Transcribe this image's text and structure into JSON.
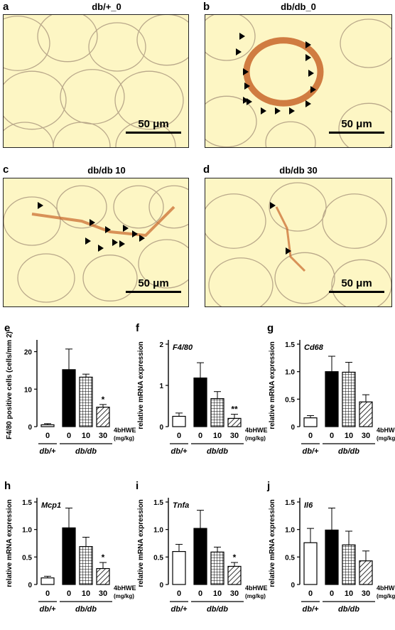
{
  "micrographs": [
    {
      "letter": "a",
      "title": "db/+_0",
      "scale": "50 μm",
      "arrowheads": 0
    },
    {
      "letter": "b",
      "title": "db/db_0",
      "scale": "50 μm",
      "arrowheads": 14
    },
    {
      "letter": "c",
      "title": "db/db  10",
      "scale": "50 μm",
      "arrowheads": 10
    },
    {
      "letter": "d",
      "title": "db/db  30",
      "scale": "50 μm",
      "arrowheads": 2
    }
  ],
  "treatment_label": "4bHWE",
  "unit_label": "(mg/kg)",
  "dose_ticks": [
    "0",
    "0",
    "10",
    "30"
  ],
  "group_labels": [
    "db/+",
    "db/db"
  ],
  "colors": {
    "background": "#fdf6c4",
    "stain": "#c8662a",
    "bar_black": "#000000",
    "bar_white": "#ffffff"
  },
  "chart_data": [
    {
      "letter": "e",
      "type": "bar",
      "ylabel": "F4/80 positive cells (cells/mm 2)",
      "gene": "",
      "yticks": [
        "0",
        "10",
        "20"
      ],
      "ylim": [
        0,
        22
      ],
      "categories": [
        "db/+ 0",
        "db/db 0",
        "db/db 10",
        "db/db 30"
      ],
      "values": [
        0.5,
        15.2,
        13.2,
        5.2
      ],
      "errors": [
        0.3,
        5.5,
        0.8,
        0.7
      ],
      "significance": [
        "",
        "",
        "",
        "*"
      ]
    },
    {
      "letter": "f",
      "type": "bar",
      "ylabel": "relative mRNA expression",
      "gene": "F4/80",
      "yticks": [
        "0",
        "1",
        "2"
      ],
      "ylim": [
        0,
        2
      ],
      "categories": [
        "db/+ 0",
        "db/db 0",
        "db/db 10",
        "db/db 30"
      ],
      "values": [
        0.25,
        1.18,
        0.68,
        0.2
      ],
      "errors": [
        0.08,
        0.37,
        0.17,
        0.1
      ],
      "significance": [
        "",
        "",
        "",
        "**"
      ]
    },
    {
      "letter": "g",
      "type": "bar",
      "ylabel": "relative mRNA expression",
      "gene": "Cd68",
      "yticks": [
        "0",
        "0.5",
        "1.0",
        "1.5"
      ],
      "ylim": [
        0,
        1.5
      ],
      "categories": [
        "db/+ 0",
        "db/db 0",
        "db/db 10",
        "db/db 30"
      ],
      "values": [
        0.16,
        1.0,
        0.99,
        0.45
      ],
      "errors": [
        0.04,
        0.28,
        0.18,
        0.13
      ],
      "significance": [
        "",
        "",
        "",
        ""
      ]
    },
    {
      "letter": "h",
      "type": "bar",
      "ylabel": "relative mRNA expression",
      "gene": "Mcp1",
      "yticks": [
        "0",
        "0.5",
        "1.0",
        "1.5"
      ],
      "ylim": [
        0,
        1.5
      ],
      "categories": [
        "db/+ 0",
        "db/db 0",
        "db/db 10",
        "db/db 30"
      ],
      "values": [
        0.12,
        1.03,
        0.69,
        0.29
      ],
      "errors": [
        0.03,
        0.36,
        0.17,
        0.11
      ],
      "significance": [
        "",
        "",
        "",
        "*"
      ]
    },
    {
      "letter": "i",
      "type": "bar",
      "ylabel": "relative mRNA expression",
      "gene": "Tnfa",
      "yticks": [
        "0",
        "0.5",
        "1.0",
        "1.5"
      ],
      "ylim": [
        0,
        1.5
      ],
      "categories": [
        "db/+ 0",
        "db/db 0",
        "db/db 10",
        "db/db 30"
      ],
      "values": [
        0.6,
        1.02,
        0.59,
        0.33
      ],
      "errors": [
        0.13,
        0.33,
        0.09,
        0.07
      ],
      "significance": [
        "",
        "",
        "",
        "*"
      ]
    },
    {
      "letter": "j",
      "type": "bar",
      "ylabel": "relative mRNA expression",
      "gene": "Il6",
      "yticks": [
        "0",
        "0.5",
        "1.0",
        "1.5"
      ],
      "ylim": [
        0,
        1.5
      ],
      "categories": [
        "db/+ 0",
        "db/db 0",
        "db/db 10",
        "db/db 30"
      ],
      "values": [
        0.76,
        0.99,
        0.72,
        0.43
      ],
      "errors": [
        0.26,
        0.4,
        0.25,
        0.18
      ],
      "significance": [
        "",
        "",
        "",
        ""
      ]
    }
  ]
}
